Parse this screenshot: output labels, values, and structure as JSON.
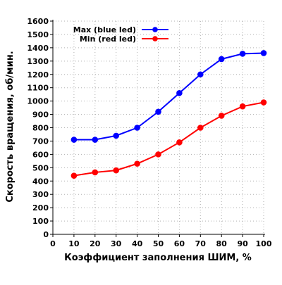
{
  "chart_data": {
    "type": "line",
    "title": "",
    "xlabel": "Коэффициент заполнения ШИМ, %",
    "ylabel": "Скорость вращения, об/мин.",
    "xlim": [
      0,
      100
    ],
    "ylim": [
      0,
      1600
    ],
    "x_ticks": [
      0,
      10,
      20,
      30,
      40,
      50,
      60,
      70,
      80,
      90,
      100
    ],
    "y_ticks": [
      0,
      100,
      200,
      300,
      400,
      500,
      600,
      700,
      800,
      900,
      1000,
      1100,
      1200,
      1300,
      1400,
      1500,
      1600
    ],
    "grid": true,
    "grid_style": "dotted",
    "legend_position": "top-left",
    "x": [
      10,
      20,
      30,
      40,
      50,
      60,
      70,
      80,
      90,
      100
    ],
    "series": [
      {
        "name": "Max (blue led)",
        "color": "#0000ff",
        "values": [
          710,
          710,
          740,
          800,
          920,
          1060,
          1200,
          1315,
          1355,
          1360
        ]
      },
      {
        "name": "Min (red led)",
        "color": "#ff0000",
        "values": [
          440,
          465,
          480,
          530,
          600,
          690,
          800,
          890,
          960,
          990
        ]
      }
    ]
  }
}
